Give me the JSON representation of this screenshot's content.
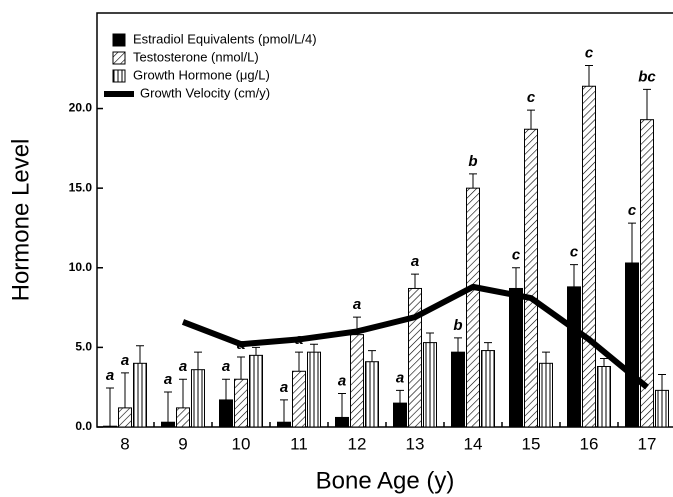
{
  "chart_data": {
    "type": "bar",
    "x_label": "Bone Age (y)",
    "y_label": "Hormone Level",
    "categories": [
      "8",
      "9",
      "10",
      "11",
      "12",
      "13",
      "14",
      "15",
      "16",
      "17"
    ],
    "series": [
      {
        "name": "Estradiol Equivalents (pmol/L/4)",
        "color": "#000000",
        "pattern": "solid",
        "values": [
          0.05,
          0.3,
          1.7,
          0.3,
          0.6,
          1.5,
          4.7,
          8.7,
          8.8,
          10.3
        ],
        "errors": [
          2.4,
          1.9,
          1.3,
          1.4,
          1.5,
          0.8,
          0.9,
          1.3,
          1.4,
          2.5
        ],
        "annotations": [
          "a",
          "a",
          "a",
          "a",
          "a",
          "a",
          "b",
          "c",
          "c",
          "c"
        ]
      },
      {
        "name": "Testosterone (nmol/L)",
        "color": "#000000",
        "pattern": "diagonal",
        "values": [
          1.2,
          1.2,
          3.0,
          3.5,
          5.8,
          8.7,
          15.0,
          18.7,
          21.4,
          19.3
        ],
        "errors": [
          2.2,
          1.8,
          1.4,
          1.2,
          1.1,
          0.9,
          0.9,
          1.2,
          1.3,
          1.9
        ],
        "annotations": [
          "a",
          "a",
          "a",
          "a",
          "a",
          "a",
          "b",
          "c",
          "c",
          "bc"
        ]
      },
      {
        "name": "Growth Hormone (μg/L)",
        "color": "#000000",
        "pattern": "vertical",
        "values": [
          4.0,
          3.6,
          4.5,
          4.7,
          4.1,
          5.3,
          4.8,
          4.0,
          3.8,
          2.3
        ],
        "errors": [
          1.1,
          1.1,
          0.5,
          0.5,
          0.7,
          0.6,
          0.5,
          0.7,
          0.5,
          1.0
        ]
      },
      {
        "name": "Growth Velocity (cm/y)",
        "color": "#000000",
        "type": "line",
        "values": [
          null,
          6.6,
          5.2,
          5.5,
          6.0,
          6.9,
          8.8,
          8.1,
          5.5,
          2.5
        ]
      }
    ],
    "ylim": [
      0,
      26
    ],
    "yticks": [
      {
        "value": 0,
        "label": "0.0"
      },
      {
        "value": 5,
        "label": "5.0"
      },
      {
        "value": 10,
        "label": "10.0"
      },
      {
        "value": 15,
        "label": "15.0"
      },
      {
        "value": 20,
        "label": "20.0"
      }
    ],
    "legend": "upper left"
  }
}
